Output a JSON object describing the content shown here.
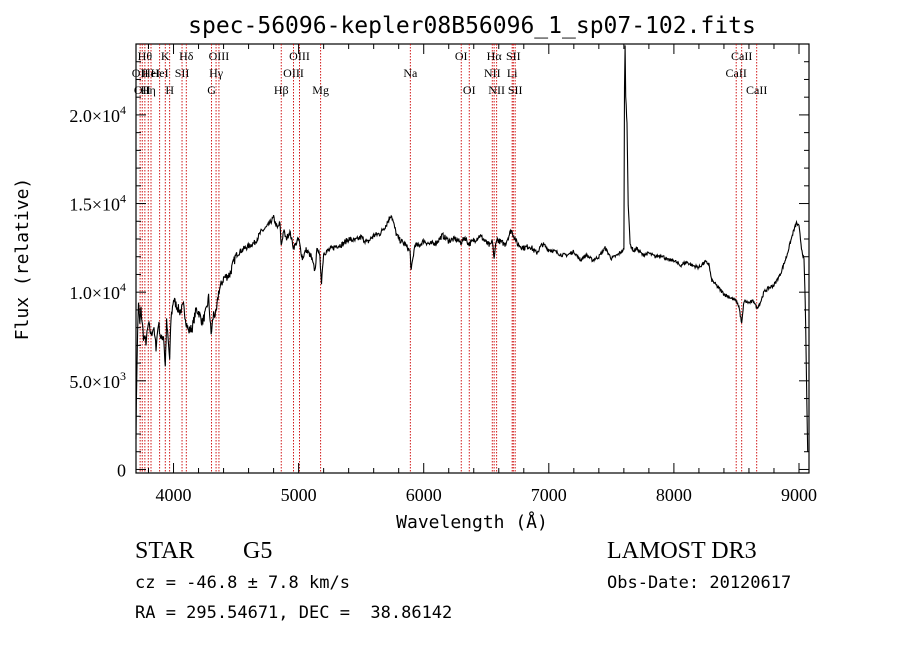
{
  "chart_data": {
    "type": "line",
    "title": "spec-56096-kepler08B56096_1_sp07-102.fits",
    "xlabel": "Wavelength (Å)",
    "ylabel": "Flux (relative)",
    "xlim": [
      3700,
      9080
    ],
    "ylim": [
      -200,
      24000
    ],
    "xticks": [
      4000,
      5000,
      6000,
      7000,
      8000,
      9000
    ],
    "xtick_labels": [
      "4000",
      "5000",
      "6000",
      "7000",
      "8000",
      "9000"
    ],
    "yticks": [
      {
        "value": 0,
        "mantissa": "0",
        "exp": ""
      },
      {
        "value": 5000,
        "mantissa": "5.0×10",
        "exp": "3"
      },
      {
        "value": 10000,
        "mantissa": "1.0×10",
        "exp": "4"
      },
      {
        "value": 15000,
        "mantissa": "1.5×10",
        "exp": "4"
      },
      {
        "value": 20000,
        "mantissa": "2.0×10",
        "exp": "4"
      }
    ],
    "line_color": "#000000",
    "marker_color": "#cc0000",
    "spectrum": {
      "x": [
        3700,
        3710,
        3720,
        3730,
        3740,
        3760,
        3780,
        3800,
        3820,
        3840,
        3860,
        3880,
        3900,
        3920,
        3934,
        3945,
        3960,
        3969,
        3980,
        4000,
        4020,
        4050,
        4080,
        4102,
        4120,
        4150,
        4180,
        4200,
        4230,
        4260,
        4280,
        4300,
        4320,
        4340,
        4360,
        4400,
        4450,
        4500,
        4550,
        4600,
        4650,
        4700,
        4750,
        4800,
        4830,
        4850,
        4861,
        4880,
        4900,
        4930,
        4960,
        5000,
        5030,
        5060,
        5100,
        5130,
        5150,
        5170,
        5183,
        5200,
        5250,
        5300,
        5350,
        5400,
        5450,
        5500,
        5550,
        5600,
        5650,
        5700,
        5740,
        5780,
        5800,
        5850,
        5890,
        5900,
        5930,
        5960,
        6000,
        6050,
        6100,
        6150,
        6200,
        6250,
        6300,
        6330,
        6360,
        6400,
        6450,
        6500,
        6530,
        6550,
        6563,
        6580,
        6600,
        6650,
        6700,
        6750,
        6800,
        6850,
        6900,
        6950,
        7000,
        7050,
        7100,
        7150,
        7200,
        7250,
        7300,
        7350,
        7400,
        7450,
        7500,
        7550,
        7580,
        7600,
        7605,
        7610,
        7615,
        7625,
        7635,
        7650,
        7680,
        7700,
        7750,
        7800,
        7850,
        7900,
        7950,
        8000,
        8050,
        8100,
        8150,
        8200,
        8250,
        8280,
        8300,
        8350,
        8400,
        8450,
        8498,
        8520,
        8542,
        8560,
        8600,
        8640,
        8662,
        8690,
        8720,
        8750,
        8800,
        8850,
        8900,
        8950,
        8980,
        9000,
        9020,
        9040,
        9050,
        9060,
        9070
      ],
      "y": [
        2000,
        7000,
        9500,
        8200,
        9000,
        7500,
        7200,
        8200,
        7600,
        8000,
        6900,
        8300,
        7300,
        7600,
        5800,
        8300,
        7000,
        6200,
        8500,
        9600,
        9300,
        8900,
        9200,
        8300,
        7800,
        8000,
        9000,
        8900,
        8300,
        8900,
        9700,
        7600,
        8800,
        8700,
        10000,
        10800,
        11000,
        12100,
        12400,
        12600,
        12800,
        13400,
        13700,
        14200,
        13600,
        13900,
        12600,
        13500,
        13000,
        13400,
        12500,
        13000,
        11900,
        12400,
        12000,
        11200,
        12600,
        11900,
        10600,
        12200,
        12400,
        12600,
        12700,
        13000,
        12900,
        13100,
        12800,
        13200,
        13300,
        13800,
        14400,
        13300,
        13000,
        12700,
        12300,
        11200,
        12700,
        12600,
        12900,
        12700,
        12800,
        13200,
        12900,
        13000,
        12800,
        13100,
        12700,
        12900,
        13200,
        12800,
        12600,
        12900,
        11800,
        13000,
        12900,
        12700,
        13500,
        12700,
        12500,
        12600,
        12200,
        12700,
        12400,
        12300,
        12100,
        12100,
        12300,
        11800,
        12100,
        11800,
        12000,
        12500,
        11900,
        12100,
        12300,
        12400,
        21500,
        24000,
        21000,
        19500,
        15000,
        12700,
        12300,
        12500,
        12100,
        12200,
        12000,
        12100,
        11800,
        11800,
        11500,
        11700,
        11500,
        11400,
        11700,
        11600,
        10700,
        10300,
        9900,
        9700,
        9500,
        9200,
        8200,
        9500,
        9400,
        9500,
        9100,
        9400,
        10000,
        10200,
        10400,
        11000,
        12000,
        13300,
        13900,
        13700,
        12500,
        11800,
        9500,
        5000,
        1000
      ]
    },
    "lines": [
      {
        "x": 3733,
        "label": "OII",
        "row": 2
      },
      {
        "x": 3750,
        "label": "OII",
        "row": 3
      },
      {
        "x": 3771,
        "label": "Hθ",
        "row": 1
      },
      {
        "x": 3798,
        "label": "Hη",
        "row": 3
      },
      {
        "x": 3820,
        "label": "HeI",
        "row": 2
      },
      {
        "x": 3889,
        "label": "HeI",
        "row": 2
      },
      {
        "x": 3934,
        "label": "K",
        "row": 1
      },
      {
        "x": 3969,
        "label": "H",
        "row": 3
      },
      {
        "x": 4068,
        "label": "SII",
        "row": 2
      },
      {
        "x": 4102,
        "label": "Hδ",
        "row": 1
      },
      {
        "x": 4304,
        "label": "G",
        "row": 3
      },
      {
        "x": 4340,
        "label": "Hγ",
        "row": 2
      },
      {
        "x": 4363,
        "label": "OIII",
        "row": 1
      },
      {
        "x": 4861,
        "label": "Hβ",
        "row": 3
      },
      {
        "x": 4959,
        "label": "OIII",
        "row": 2
      },
      {
        "x": 5007,
        "label": "OIII",
        "row": 1
      },
      {
        "x": 5176,
        "label": "Mg",
        "row": 3
      },
      {
        "x": 5893,
        "label": "Na",
        "row": 2
      },
      {
        "x": 6300,
        "label": "OI",
        "row": 1
      },
      {
        "x": 6364,
        "label": "OI",
        "row": 3
      },
      {
        "x": 6548,
        "label": "NII",
        "row": 2
      },
      {
        "x": 6563,
        "label": "Hα",
        "row": 1
      },
      {
        "x": 6583,
        "label": "NII",
        "row": 3
      },
      {
        "x": 6707,
        "label": "Li",
        "row": 2
      },
      {
        "x": 6716,
        "label": "SII",
        "row": 1
      },
      {
        "x": 6731,
        "label": "SII",
        "row": 3
      },
      {
        "x": 8498,
        "label": "CaII",
        "row": 2
      },
      {
        "x": 8542,
        "label": "CaII",
        "row": 1
      },
      {
        "x": 8662,
        "label": "CaII",
        "row": 3
      }
    ]
  },
  "info": {
    "object_class": "STAR",
    "subclass": "G5",
    "velocity": "cz = -46.8 ± 7.8 km/s",
    "coordinates": "RA = 295.54671, DEC =  38.86142",
    "survey": "LAMOST DR3",
    "obs_date": "Obs-Date: 20120617"
  }
}
